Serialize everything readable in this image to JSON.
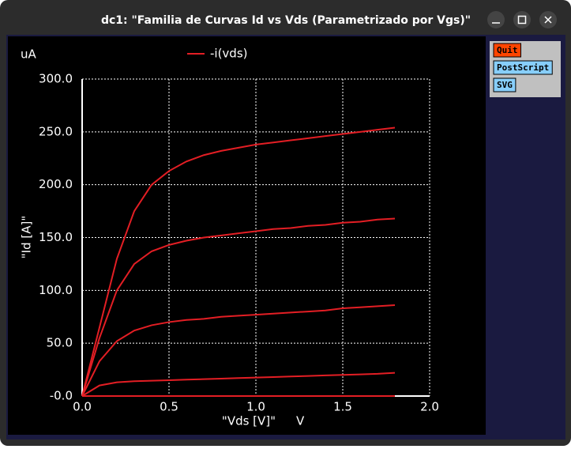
{
  "window": {
    "title": "dc1: \"Familia de Curvas Id vs Vds (Parametrizado por Vgs)\""
  },
  "buttons": [
    "Quit",
    "PostScript",
    "SVG"
  ],
  "chart_data": {
    "type": "line",
    "y_unit": "uA",
    "x_unit": "V",
    "ylabel": "\"Id [A]\"",
    "xlabel": "\"Vds [V]\"",
    "x": [
      0,
      0.1,
      0.2,
      0.3,
      0.4,
      0.5,
      0.6,
      0.7,
      0.8,
      0.9,
      1.0,
      1.1,
      1.2,
      1.3,
      1.4,
      1.5,
      1.6,
      1.7,
      1.8
    ],
    "series": [
      {
        "name": "-i(vds)",
        "color": "#e31e24",
        "values": [
          0,
          65,
          130,
          175,
          200,
          213,
          222,
          228,
          232,
          235,
          238,
          240,
          242,
          244,
          246,
          248,
          250,
          252,
          254
        ]
      },
      {
        "color": "#e31e24",
        "values": [
          0,
          55,
          100,
          125,
          137,
          143,
          147,
          150,
          152,
          154,
          156,
          158,
          159,
          161,
          162,
          164,
          165,
          167,
          168
        ]
      },
      {
        "color": "#e31e24",
        "values": [
          0,
          33,
          52,
          62,
          67,
          70,
          72,
          73,
          75,
          76,
          77,
          78,
          79,
          80,
          81,
          83,
          84,
          85,
          86
        ]
      },
      {
        "color": "#e31e24",
        "values": [
          0,
          10,
          13,
          14,
          14.5,
          15,
          15.5,
          16,
          16.5,
          17,
          17.5,
          18,
          18.5,
          19,
          19.5,
          20,
          20.5,
          21,
          22
        ]
      },
      {
        "color": "#e31e24",
        "values": [
          0,
          0,
          0,
          0,
          0,
          0,
          0,
          0,
          0,
          0,
          0,
          0,
          0,
          0,
          0,
          0,
          0,
          0,
          0
        ]
      }
    ],
    "xlim": [
      0,
      2
    ],
    "ylim": [
      0,
      300
    ],
    "xticks": [
      {
        "value": 0,
        "label": "0.0"
      },
      {
        "value": 0.5,
        "label": "0.5"
      },
      {
        "value": 1,
        "label": "1.0"
      },
      {
        "value": 1.5,
        "label": "1.5"
      },
      {
        "value": 2,
        "label": "2.0"
      }
    ],
    "yticks": [
      {
        "value": 0,
        "label": "-0.0"
      },
      {
        "value": 50,
        "label": "50.0"
      },
      {
        "value": 100,
        "label": "100.0"
      },
      {
        "value": 150,
        "label": "150.0"
      },
      {
        "value": 200,
        "label": "200.0"
      },
      {
        "value": 250,
        "label": "250.0"
      },
      {
        "value": 300,
        "label": "300.0"
      }
    ],
    "grid": true
  }
}
